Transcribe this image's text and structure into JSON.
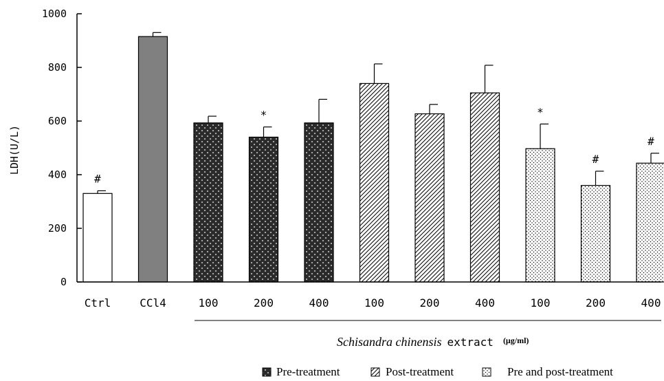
{
  "chart_data": {
    "type": "bar",
    "ylabel": "LDH(U/L)",
    "ylim": [
      0,
      1000
    ],
    "yticks": [
      0,
      200,
      400,
      600,
      800,
      1000
    ],
    "categories": [
      "Ctrl",
      "CCl4",
      "100",
      "200",
      "400",
      "100",
      "200",
      "400",
      "100",
      "200",
      "400"
    ],
    "values": [
      330,
      915,
      593,
      540,
      593,
      740,
      627,
      705,
      497,
      360,
      443
    ],
    "errors": [
      10,
      15,
      25,
      38,
      88,
      73,
      35,
      103,
      92,
      53,
      37
    ],
    "annotations": [
      "#",
      "",
      "",
      "*",
      "",
      "",
      "",
      "",
      "*",
      "#",
      "#"
    ],
    "groups": [
      "control",
      "model",
      "pre",
      "pre",
      "pre",
      "post",
      "post",
      "post",
      "prepost",
      "prepost",
      "prepost"
    ],
    "group_label": {
      "name": "Schisandra chinensis",
      "suffix": "extract",
      "unit": "(μg/ml)"
    },
    "legend": {
      "placement": "bottom",
      "items": [
        {
          "key": "pre",
          "label": "Pre-treatment"
        },
        {
          "key": "post",
          "label": "Post-treatment"
        },
        {
          "key": "prepost",
          "label": "Pre and post-treatment"
        }
      ]
    },
    "colors": {
      "control": "#ffffff",
      "model": "#808080",
      "pre": "#2b2b2b",
      "axis": "#000000"
    }
  }
}
